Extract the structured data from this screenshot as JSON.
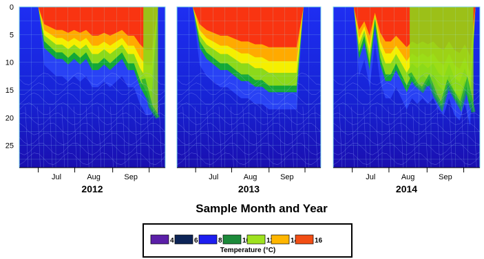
{
  "chart_data": {
    "type": "heatmap",
    "xlabel": "Sample Month and Year",
    "ylim": [
      0,
      29
    ],
    "y_ticks": [
      "0",
      "5",
      "10",
      "15",
      "20",
      "25"
    ],
    "grid": false,
    "panels": [
      {
        "year": "2012",
        "month_labels": [
          "Jul",
          "Aug",
          "Sep"
        ],
        "warm_layer_depth": [
          0,
          6,
          7,
          8,
          8,
          9,
          8,
          9,
          8,
          10,
          10,
          9,
          10,
          9,
          8,
          10,
          10,
          13,
          15,
          15,
          0
        ],
        "green_layer_depth": [
          0,
          0,
          0,
          0,
          0,
          0,
          0,
          0,
          0,
          0,
          0,
          0,
          0,
          0,
          0,
          0,
          0,
          13,
          18,
          20,
          0
        ],
        "surface_start": 0.13,
        "surface_end": 0.95
      },
      {
        "year": "2013",
        "month_labels": [
          "Jul",
          "Aug",
          "Sep"
        ],
        "warm_layer_depth": [
          0,
          6,
          8,
          9,
          10,
          10,
          11,
          12,
          12,
          13,
          13,
          14,
          14,
          14,
          14,
          14,
          0
        ],
        "green_layer_depth": [
          0,
          0,
          0,
          0,
          0,
          0,
          0,
          0,
          0,
          0,
          0,
          0,
          0,
          0,
          0,
          0,
          0
        ],
        "surface_start": 0.11,
        "surface_end": 0.88
      },
      {
        "year": "2014",
        "month_labels": [
          "Jul",
          "Aug",
          "Sep"
        ],
        "warm_layer_depth": [
          0,
          8,
          5,
          10,
          2,
          9,
          12,
          12,
          10,
          12,
          14,
          12,
          13,
          12,
          13,
          12,
          14,
          15,
          12,
          15,
          16,
          13,
          17,
          0
        ],
        "green_layer_depth": [
          0,
          0,
          0,
          0,
          0,
          0,
          0,
          0,
          0,
          0,
          0,
          0,
          12,
          14,
          15,
          13,
          16,
          18,
          14,
          16,
          18,
          14,
          19,
          0
        ],
        "surface_start": 0.14,
        "surface_end": 0.97
      }
    ],
    "legend": {
      "title": "Temperature (°C)",
      "entries": [
        {
          "label": "4",
          "color": "#5b1fa8"
        },
        {
          "label": "6",
          "color": "#0d2457"
        },
        {
          "label": "8",
          "color": "#1d1ef0"
        },
        {
          "label": "10",
          "color": "#1c8a3a"
        },
        {
          "label": "12",
          "color": "#9ee21f"
        },
        {
          "label": "14",
          "color": "#ffb600"
        },
        {
          "label": "16",
          "color": "#f24e14"
        }
      ],
      "placement": "bottom-center"
    },
    "colors": {
      "deep": "#1a0fb0",
      "mid": "#1e2ef2",
      "thermocline": "#12a838",
      "lime": "#8cd91a",
      "yellow": "#f5ef00",
      "orange": "#ffaa00",
      "red": "#f93411",
      "grid": "#a0e8f0"
    }
  }
}
